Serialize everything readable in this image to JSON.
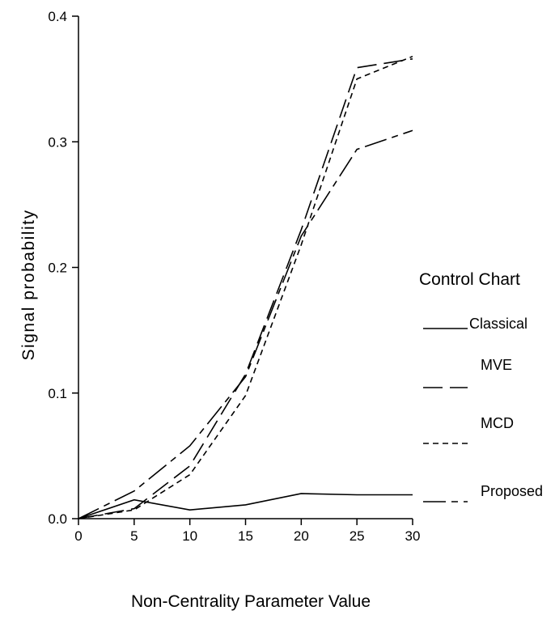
{
  "chart_data": {
    "type": "line",
    "title": "",
    "xlabel": "Non-Centrality Parameter Value",
    "ylabel": "Signal probability",
    "xlim": [
      0,
      30
    ],
    "ylim": [
      0,
      0.4
    ],
    "x_ticks": [
      "0",
      "5",
      "10",
      "15",
      "20",
      "25",
      "30"
    ],
    "y_ticks": [
      "0.0",
      "0.1",
      "0.2",
      "0.3",
      "0.4"
    ],
    "x": [
      0,
      5,
      10,
      15,
      20,
      25,
      30
    ],
    "series": [
      {
        "name": "Classical",
        "values": [
          0.0,
          0.015,
          0.007,
          0.011,
          0.02,
          0.019,
          0.019
        ],
        "dash": "solid"
      },
      {
        "name": "MVE",
        "values": [
          0.0,
          0.008,
          0.042,
          0.115,
          0.23,
          0.359,
          0.366
        ],
        "dash": "long-dash"
      },
      {
        "name": "MCD",
        "values": [
          0.0,
          0.007,
          0.035,
          0.098,
          0.218,
          0.35,
          0.368
        ],
        "dash": "short-dash"
      },
      {
        "name": "Proposed",
        "values": [
          0.0,
          0.022,
          0.058,
          0.113,
          0.225,
          0.294,
          0.309
        ],
        "dash": "dash-dot"
      }
    ],
    "legend": {
      "title": "Control Chart",
      "position": "right"
    },
    "grid": false
  }
}
